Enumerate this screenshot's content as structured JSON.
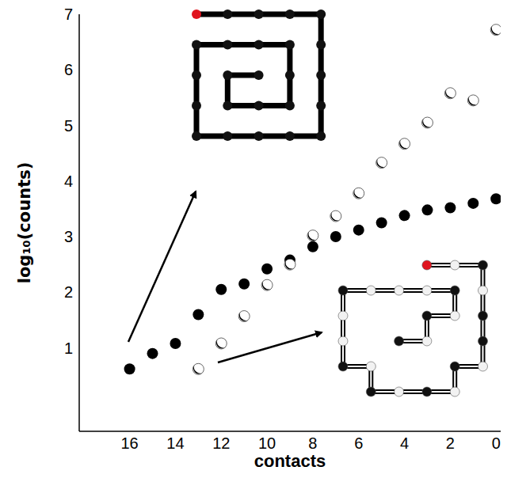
{
  "chart_data": {
    "type": "scatter",
    "x_label": "contacts",
    "y_label": "log₁₀(counts)",
    "xlim": [
      18.2,
      -0.2
    ],
    "xticks": [
      16,
      14,
      12,
      10,
      8,
      6,
      4,
      2,
      0
    ],
    "ylim": [
      -0.5,
      7
    ],
    "yticks": [
      1,
      2,
      3,
      4,
      5,
      6,
      7
    ],
    "grid": false,
    "series": [
      {
        "color": "#000000",
        "marker": "circle",
        "x": [
          16,
          15,
          14,
          13,
          12,
          11,
          10,
          9,
          8,
          7,
          6,
          5,
          4,
          3,
          2,
          1,
          0
        ],
        "values": [
          0.62,
          0.9,
          1.08,
          1.6,
          2.05,
          2.15,
          2.42,
          2.58,
          2.82,
          3.0,
          3.12,
          3.25,
          3.38,
          3.48,
          3.52,
          3.6,
          3.68
        ]
      },
      {
        "color": "#ffffff",
        "marker": "half",
        "x": [
          13,
          12,
          11,
          10,
          9,
          8,
          7,
          6,
          5,
          4,
          3,
          2,
          1,
          0
        ],
        "values": [
          0.62,
          1.08,
          1.57,
          2.13,
          2.5,
          3.02,
          3.37,
          3.78,
          4.33,
          4.67,
          5.05,
          5.58,
          5.45,
          6.72
        ]
      }
    ]
  }
}
